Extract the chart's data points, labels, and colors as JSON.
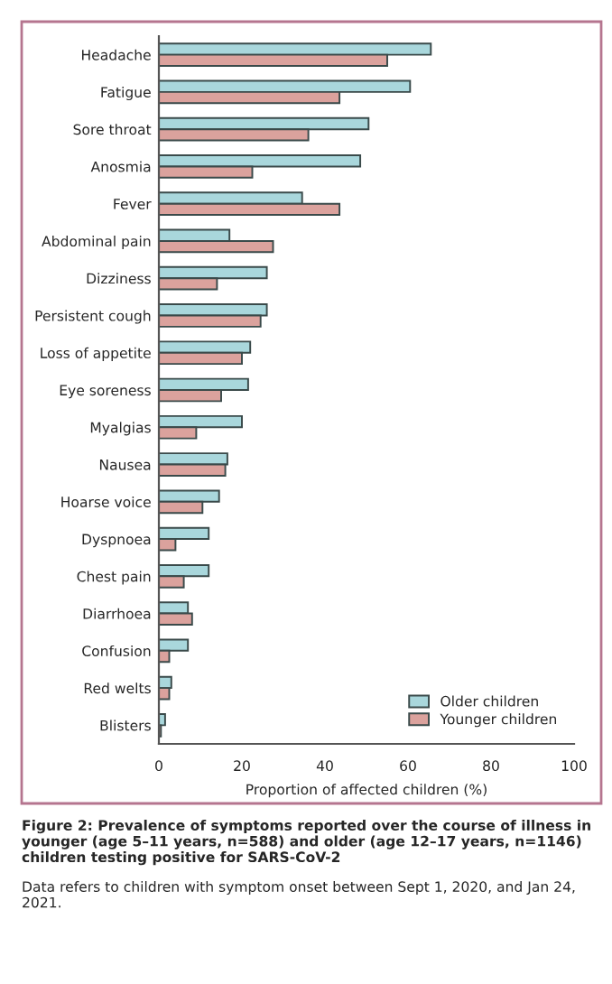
{
  "chart_data": {
    "type": "bar",
    "orientation": "horizontal",
    "title": "Figure 2: Prevalence of symptoms reported over the course of illness in younger (age 5–11 years, n=588) and older (age 12–17 years, n=1146) children testing positive for SARS-CoV-2",
    "annotations": [
      "Data refers to children with symptom onset between Sept 1, 2020, and Jan 24, 2021."
    ],
    "xlabel": "Proportion of affected children (%)",
    "categories": [
      "Headache",
      "Fatigue",
      "Sore throat",
      "Anosmia",
      "Fever",
      "Abdominal pain",
      "Dizziness",
      "Persistent cough",
      "Loss of appetite",
      "Eye soreness",
      "Myalgias",
      "Nausea",
      "Hoarse voice",
      "Dyspnoea",
      "Chest pain",
      "Diarrhoea",
      "Confusion",
      "Red welts",
      "Blisters"
    ],
    "series": [
      {
        "name": "Older children",
        "color": "#a9d7dc",
        "values": [
          65.5,
          60.5,
          50.5,
          48.5,
          34.5,
          17,
          26,
          26,
          22,
          21.5,
          20,
          16.5,
          14.5,
          12,
          12,
          7,
          7,
          3,
          1.5
        ]
      },
      {
        "name": "Younger children",
        "color": "#dba29d",
        "values": [
          55,
          43.5,
          36,
          22.5,
          43.5,
          27.5,
          14,
          24.5,
          20,
          15,
          9,
          16,
          10.5,
          4,
          6,
          8,
          2.5,
          2.5,
          0.5
        ]
      }
    ],
    "xlim": [
      0,
      100
    ],
    "xticks": [
      0,
      20,
      40,
      60,
      80,
      100
    ],
    "grid": false,
    "legend": "bottom right"
  }
}
